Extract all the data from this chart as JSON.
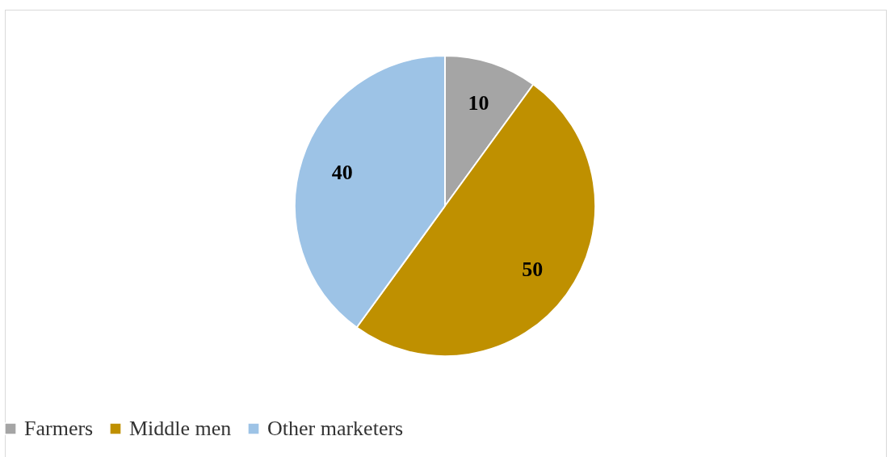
{
  "chart_data": {
    "type": "pie",
    "categories": [
      "Farmers",
      "Middle men",
      "Other marketers"
    ],
    "values": [
      10,
      50,
      40
    ],
    "colors": [
      "#a5a5a5",
      "#bf9000",
      "#9dc3e6"
    ],
    "data_labels": true,
    "legend": "bottom"
  }
}
